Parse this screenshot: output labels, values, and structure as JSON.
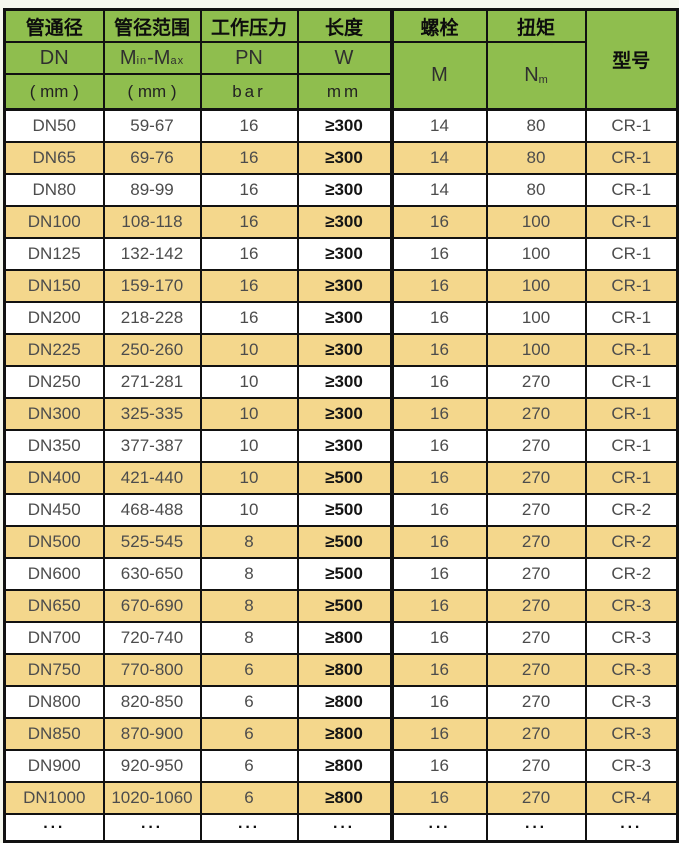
{
  "colors": {
    "header_green": "#8fbe4e",
    "row_tan": "#f4d78c",
    "row_white": "#ffffff",
    "border_black": "#111111",
    "data_text_gray": "#4c4c4c",
    "emphasis_black": "#141414"
  },
  "header": {
    "row1": {
      "dn": "管通径",
      "range": "管径范围",
      "pressure": "工作压力",
      "length": "长度",
      "bolt": "螺栓",
      "torque": "扭矩"
    },
    "model": "型号",
    "row2": {
      "dn": "DN",
      "pn": "PN",
      "w": "W",
      "m": "M"
    },
    "range_label": {
      "m1": "M",
      "s1": "in",
      "dash": "-",
      "m2": "M",
      "s2": "ax"
    },
    "torque_label": {
      "n": "N",
      "m": "m"
    },
    "row3": {
      "dn_unit": "( mm )",
      "range_unit": "( mm )",
      "pn_unit": "bar",
      "w_unit": "mm"
    }
  },
  "table": {
    "column_keys": [
      "dn",
      "range",
      "pn",
      "w",
      "m",
      "nm",
      "model"
    ],
    "rows": [
      [
        "DN50",
        "59-67",
        "16",
        "≥300",
        "14",
        "80",
        "CR-1"
      ],
      [
        "DN65",
        "69-76",
        "16",
        "≥300",
        "14",
        "80",
        "CR-1"
      ],
      [
        "DN80",
        "89-99",
        "16",
        "≥300",
        "14",
        "80",
        "CR-1"
      ],
      [
        "DN100",
        "108-118",
        "16",
        "≥300",
        "16",
        "100",
        "CR-1"
      ],
      [
        "DN125",
        "132-142",
        "16",
        "≥300",
        "16",
        "100",
        "CR-1"
      ],
      [
        "DN150",
        "159-170",
        "16",
        "≥300",
        "16",
        "100",
        "CR-1"
      ],
      [
        "DN200",
        "218-228",
        "16",
        "≥300",
        "16",
        "100",
        "CR-1"
      ],
      [
        "DN225",
        "250-260",
        "10",
        "≥300",
        "16",
        "100",
        "CR-1"
      ],
      [
        "DN250",
        "271-281",
        "10",
        "≥300",
        "16",
        "270",
        "CR-1"
      ],
      [
        "DN300",
        "325-335",
        "10",
        "≥300",
        "16",
        "270",
        "CR-1"
      ],
      [
        "DN350",
        "377-387",
        "10",
        "≥300",
        "16",
        "270",
        "CR-1"
      ],
      [
        "DN400",
        "421-440",
        "10",
        "≥500",
        "16",
        "270",
        "CR-1"
      ],
      [
        "DN450",
        "468-488",
        "10",
        "≥500",
        "16",
        "270",
        "CR-2"
      ],
      [
        "DN500",
        "525-545",
        "8",
        "≥500",
        "16",
        "270",
        "CR-2"
      ],
      [
        "DN600",
        "630-650",
        "8",
        "≥500",
        "16",
        "270",
        "CR-2"
      ],
      [
        "DN650",
        "670-690",
        "8",
        "≥500",
        "16",
        "270",
        "CR-3"
      ],
      [
        "DN700",
        "720-740",
        "8",
        "≥800",
        "16",
        "270",
        "CR-3"
      ],
      [
        "DN750",
        "770-800",
        "6",
        "≥800",
        "16",
        "270",
        "CR-3"
      ],
      [
        "DN800",
        "820-850",
        "6",
        "≥800",
        "16",
        "270",
        "CR-3"
      ],
      [
        "DN850",
        "870-900",
        "6",
        "≥800",
        "16",
        "270",
        "CR-3"
      ],
      [
        "DN900",
        "920-950",
        "6",
        "≥800",
        "16",
        "270",
        "CR-3"
      ],
      [
        "DN1000",
        "1020-1060",
        "6",
        "≥800",
        "16",
        "270",
        "CR-4"
      ],
      [
        "···",
        "···",
        "···",
        "···",
        "···",
        "···",
        "···"
      ]
    ]
  }
}
